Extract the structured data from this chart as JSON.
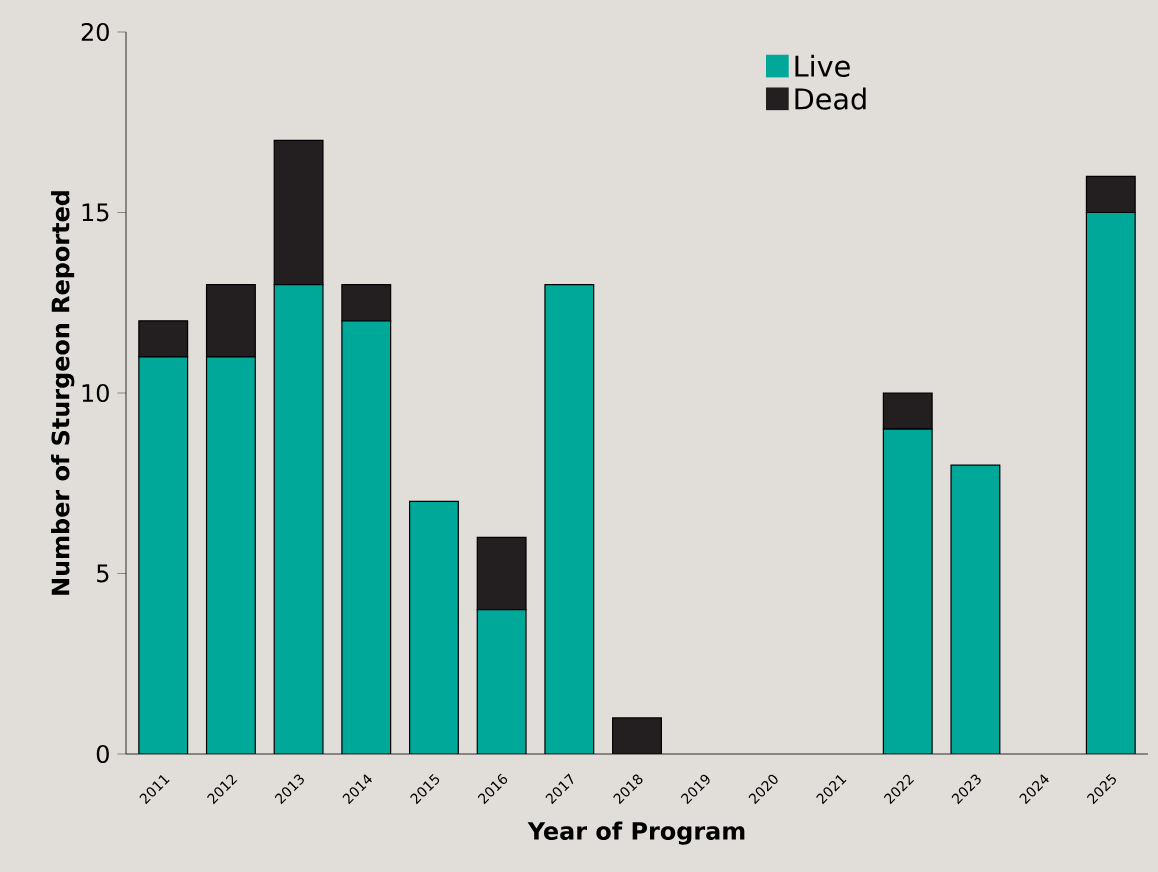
{
  "chart_data": {
    "type": "bar",
    "stacked": true,
    "xlabel": "Year of Program",
    "ylabel": "Number of Sturgeon Reported",
    "categories": [
      "2011",
      "2012",
      "2013",
      "2014",
      "2015",
      "2016",
      "2017",
      "2018",
      "2019",
      "2020",
      "2021",
      "2022",
      "2023",
      "2024",
      "2025"
    ],
    "series": [
      {
        "name": "Live",
        "color": "#00a89a",
        "values": [
          11,
          11,
          13,
          12,
          7,
          4,
          13,
          0,
          0,
          0,
          0,
          9,
          8,
          0,
          15
        ]
      },
      {
        "name": "Dead",
        "color": "#231f20",
        "values": [
          1,
          2,
          4,
          1,
          0,
          2,
          0,
          1,
          0,
          0,
          0,
          1,
          0,
          0,
          1
        ]
      }
    ],
    "ylim": [
      0,
      20
    ],
    "yticks": [
      0,
      5,
      10,
      15,
      20
    ],
    "legend": "top right"
  }
}
